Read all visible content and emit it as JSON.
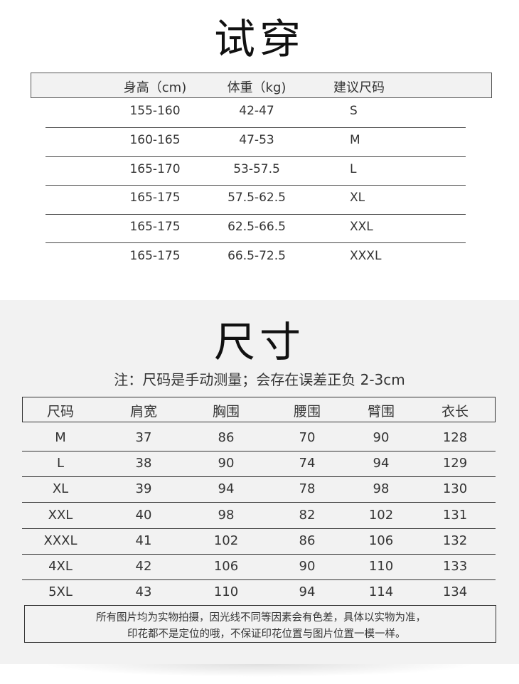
{
  "fit": {
    "title": "试穿",
    "headers": [
      "身高（cm)",
      "体重（kg)",
      "建议尺码"
    ],
    "rows": [
      [
        "155-160",
        "42-47",
        "S"
      ],
      [
        "160-165",
        "47-53",
        "M"
      ],
      [
        "165-170",
        "53-57.5",
        "L"
      ],
      [
        "165-175",
        "57.5-62.5",
        "XL"
      ],
      [
        "165-175",
        "62.5-66.5",
        "XXL"
      ],
      [
        "165-175",
        "66.5-72.5",
        "XXXL"
      ]
    ]
  },
  "size": {
    "title": "尺寸",
    "note": "注：尺码是手动测量；会存在误差正负 2-3cm",
    "headers": [
      "尺码",
      "肩宽",
      "胸围",
      "腰围",
      "臂围",
      "衣长"
    ],
    "rows": [
      [
        "M",
        "37",
        "86",
        "70",
        "90",
        "128"
      ],
      [
        "L",
        "38",
        "90",
        "74",
        "94",
        "129"
      ],
      [
        "XL",
        "39",
        "94",
        "78",
        "98",
        "130"
      ],
      [
        "XXL",
        "40",
        "98",
        "82",
        "102",
        "131"
      ],
      [
        "XXXL",
        "41",
        "102",
        "86",
        "106",
        "132"
      ],
      [
        "4XL",
        "42",
        "106",
        "90",
        "110",
        "133"
      ],
      [
        "5XL",
        "43",
        "110",
        "94",
        "114",
        "134"
      ]
    ],
    "disclaimer": [
      "所有图片均为实物拍摄，因光线不同等因素会有色差，具体以实物为准，",
      "印花都不是定位的哦，不保证印花位置与图片位置一模一样。"
    ]
  }
}
